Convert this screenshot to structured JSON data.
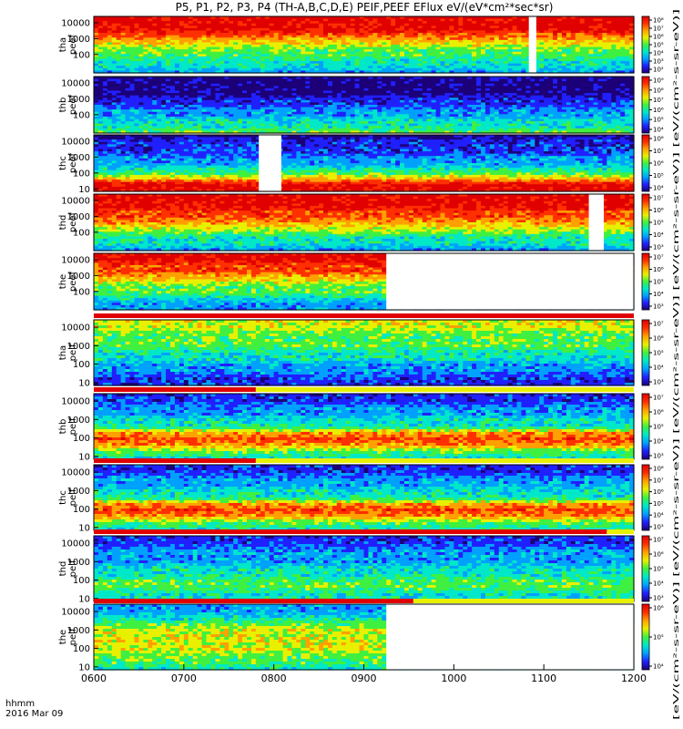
{
  "title": "P5, P1, P2, P3, P4 (TH-A,B,C,D,E) PEIF,PEEF EFlux eV/(eV*cm²*sec*sr)",
  "colorbar_unit_label": "[eV/(cm²-s-sr-eV)] [eV/(cm²-s-sr-eV)] [eV/(cm²-s-sr-eV)] [eV/(cm²-s-sr-eV)] [eV/(cm²-s-sr-eV)]",
  "x_axis": {
    "corner_label_line1": "hhmm",
    "corner_label_line2": "2016 Mar 09",
    "tick_labels": [
      "0600",
      "0700",
      "0800",
      "0900",
      "1000",
      "1100",
      "1200"
    ]
  },
  "colormap": [
    "#1c0078",
    "#2020ff",
    "#00a0ff",
    "#00e8c8",
    "#40f040",
    "#e8f000",
    "#ffa000",
    "#ff3000",
    "#e00000"
  ],
  "chart_data": [
    {
      "type": "heatmap",
      "panel": "tha peef",
      "ylabel": [
        "tha",
        "peef"
      ],
      "x_range": [
        "0600",
        "1200"
      ],
      "y_scale": "log",
      "y_ticks": [
        "100",
        "1000",
        "10000"
      ],
      "colorbar_scale": "log",
      "colorbar_ticks": [
        "10²",
        "10³",
        "10⁴",
        "10⁵",
        "10⁶",
        "10⁷",
        "10⁸"
      ],
      "data_gaps": [
        [
          "1050",
          "1055"
        ]
      ],
      "profile": [
        8,
        8,
        8,
        7,
        6,
        5,
        4,
        4,
        3,
        3,
        2
      ]
    },
    {
      "type": "heatmap",
      "panel": "thb peef",
      "ylabel": [
        "thb",
        "peef"
      ],
      "x_range": [
        "0600",
        "1200"
      ],
      "y_scale": "log",
      "y_ticks": [
        "100",
        "1000",
        "10000"
      ],
      "colorbar_scale": "log",
      "colorbar_ticks": [
        "10⁴",
        "10⁵",
        "10⁶",
        "10⁷",
        "10⁸",
        "10⁹"
      ],
      "data_gaps": [],
      "profile": [
        0,
        0,
        0,
        0,
        1,
        1,
        2,
        2,
        3,
        3,
        4
      ]
    },
    {
      "type": "heatmap",
      "panel": "thc peef",
      "ylabel": [
        "thc",
        "peef"
      ],
      "x_range": [
        "0600",
        "1200"
      ],
      "y_scale": "log",
      "y_ticks": [
        "10",
        "100",
        "1000",
        "10000"
      ],
      "colorbar_scale": "log",
      "colorbar_ticks": [
        "10⁴",
        "10⁵",
        "10⁶",
        "10⁷",
        "10⁸"
      ],
      "data_gaps": [
        [
          "0750",
          "0805"
        ]
      ],
      "profile": [
        0,
        1,
        1,
        1,
        2,
        2,
        3,
        4,
        6,
        8,
        8
      ]
    },
    {
      "type": "heatmap",
      "panel": "thd peef",
      "ylabel": [
        "thd",
        "peef"
      ],
      "x_range": [
        "0600",
        "1200"
      ],
      "y_scale": "log",
      "y_ticks": [
        "100",
        "1000",
        "10000"
      ],
      "colorbar_scale": "log",
      "colorbar_ticks": [
        "10³",
        "10⁴",
        "10⁵",
        "10⁶",
        "10⁷"
      ],
      "data_gaps": [
        [
          "1130",
          "1140"
        ]
      ],
      "profile": [
        8,
        8,
        8,
        7,
        7,
        6,
        5,
        4,
        3,
        3,
        2
      ]
    },
    {
      "type": "heatmap",
      "panel": "the peef",
      "ylabel": [
        "the",
        "peef"
      ],
      "x_range": [
        "0600",
        "1200"
      ],
      "y_scale": "log",
      "y_ticks": [
        "100",
        "1000",
        "10000"
      ],
      "colorbar_scale": "log",
      "colorbar_ticks": [
        "10³",
        "10⁴",
        "10⁵",
        "10⁶",
        "10⁷"
      ],
      "data_gaps": [
        [
          "0915",
          "1200"
        ]
      ],
      "profile": [
        8,
        8,
        7,
        7,
        6,
        5,
        4,
        4,
        3,
        2,
        2
      ]
    },
    {
      "type": "heatmap",
      "panel": "tha peif",
      "ylabel": [
        "tha",
        "peif"
      ],
      "x_range": [
        "0600",
        "1200"
      ],
      "y_scale": "log",
      "y_ticks": [
        "10",
        "100",
        "1000",
        "10000"
      ],
      "colorbar_scale": "log",
      "colorbar_ticks": [
        "10³",
        "10⁴",
        "10⁵",
        "10⁶",
        "10⁷"
      ],
      "data_gaps": [],
      "profile": [
        5,
        5,
        4,
        4,
        4,
        3,
        3,
        2,
        2,
        1,
        1
      ]
    },
    {
      "type": "heatmap",
      "panel": "thb peif",
      "ylabel": [
        "thb",
        "peif"
      ],
      "x_range": [
        "0600",
        "1200"
      ],
      "y_scale": "log",
      "y_ticks": [
        "10",
        "100",
        "1000",
        "10000"
      ],
      "colorbar_scale": "log",
      "colorbar_ticks": [
        "10³",
        "10⁴",
        "10⁵",
        "10⁶",
        "10⁷"
      ],
      "data_gaps": [],
      "profile": [
        1,
        1,
        2,
        2,
        3,
        3,
        6,
        7,
        6,
        4,
        3
      ]
    },
    {
      "type": "heatmap",
      "panel": "thc peif",
      "ylabel": [
        "thc",
        "peif"
      ],
      "x_range": [
        "0600",
        "1200"
      ],
      "y_scale": "log",
      "y_ticks": [
        "10",
        "100",
        "1000",
        "10000"
      ],
      "colorbar_scale": "log",
      "colorbar_ticks": [
        "10³",
        "10⁴",
        "10⁵",
        "10⁶",
        "10⁷",
        "10⁸"
      ],
      "data_gaps": [],
      "profile": [
        1,
        1,
        2,
        2,
        3,
        3,
        6,
        7,
        6,
        4,
        3
      ]
    },
    {
      "type": "heatmap",
      "panel": "thd peif",
      "ylabel": [
        "thd",
        "peif"
      ],
      "x_range": [
        "0600",
        "1200"
      ],
      "y_scale": "log",
      "y_ticks": [
        "10",
        "100",
        "1000",
        "10000"
      ],
      "colorbar_scale": "log",
      "colorbar_ticks": [
        "10³",
        "10⁴",
        "10⁵",
        "10⁶",
        "10⁷"
      ],
      "data_gaps": [],
      "profile": [
        1,
        1,
        2,
        2,
        2,
        3,
        3,
        4,
        4,
        3,
        3
      ]
    },
    {
      "type": "heatmap",
      "panel": "the peif",
      "ylabel": [
        "the",
        "peif"
      ],
      "x_range": [
        "0600",
        "1200"
      ],
      "y_scale": "log",
      "y_ticks": [
        "10",
        "100",
        "1000",
        "10000"
      ],
      "colorbar_scale": "log",
      "colorbar_ticks": [
        "10⁴",
        "10⁵",
        "10⁶"
      ],
      "data_gaps": [
        [
          "0915",
          "1200"
        ]
      ],
      "profile": [
        2,
        2,
        3,
        4,
        5,
        5,
        5,
        5,
        4,
        4,
        3
      ]
    }
  ],
  "mode_bars": [
    {
      "after_panel": 5,
      "segments": [
        {
          "from": "0600",
          "to": "1200",
          "color": "#e00000"
        }
      ]
    },
    {
      "after_panel": 6,
      "segments": [
        {
          "from": "0600",
          "to": "0748",
          "color": "#e00000"
        },
        {
          "from": "0748",
          "to": "1200",
          "color": "#e8f000"
        }
      ]
    },
    {
      "after_panel": 7,
      "segments": [
        {
          "from": "0600",
          "to": "0748",
          "color": "#e00000"
        },
        {
          "from": "0748",
          "to": "1200",
          "color": "#e8f000"
        }
      ]
    },
    {
      "after_panel": 8,
      "segments": [
        {
          "from": "0600",
          "to": "1142",
          "color": "#e00000"
        },
        {
          "from": "1142",
          "to": "1200",
          "color": "#e8f000"
        }
      ]
    },
    {
      "after_panel": 9,
      "segments": [
        {
          "from": "0600",
          "to": "0933",
          "color": "#e00000"
        },
        {
          "from": "0933",
          "to": "1200",
          "color": "#e8f000"
        }
      ]
    }
  ]
}
